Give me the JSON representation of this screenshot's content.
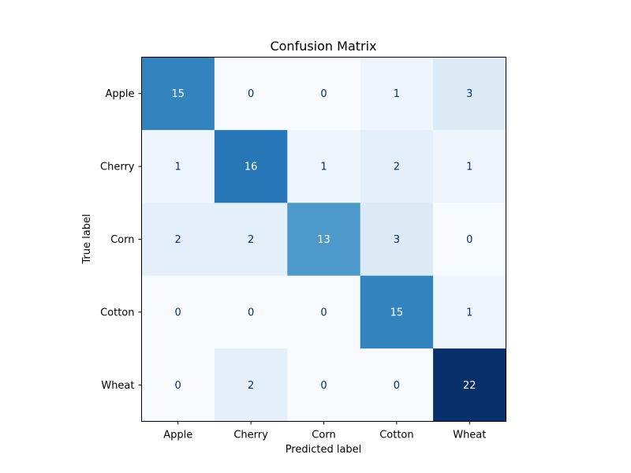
{
  "chart_data": {
    "type": "heatmap",
    "title": "Confusion Matrix",
    "xlabel": "Predicted label",
    "ylabel": "True label",
    "x_categories": [
      "Apple",
      "Cherry",
      "Corn",
      "Cotton",
      "Wheat"
    ],
    "y_categories": [
      "Apple",
      "Cherry",
      "Corn",
      "Cotton",
      "Wheat"
    ],
    "values": [
      [
        15,
        0,
        0,
        1,
        3
      ],
      [
        1,
        16,
        1,
        2,
        1
      ],
      [
        2,
        2,
        13,
        3,
        0
      ],
      [
        0,
        0,
        0,
        15,
        1
      ],
      [
        0,
        2,
        0,
        0,
        22
      ]
    ],
    "colormap": "Blues",
    "value_range": [
      0,
      22
    ],
    "colorbar": false,
    "grid": false
  }
}
